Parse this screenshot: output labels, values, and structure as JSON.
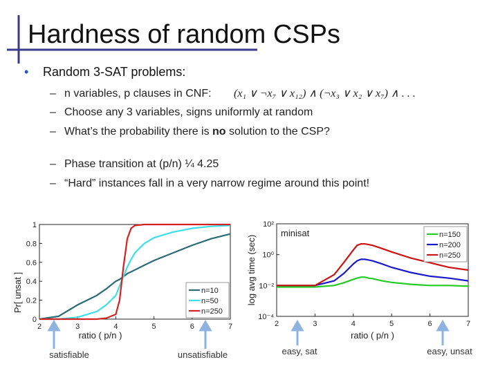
{
  "title": "Hardness of random CSPs",
  "bullet": "Random 3-SAT problems:",
  "items": [
    {
      "text": "n variables, p clauses in CNF:",
      "formula": "(x₁ ∨ ¬x₇ ∨ x₁₂) ∧ (¬x₃ ∨ x₂ ∨ x₇) ∧ . . ."
    },
    {
      "text": "Choose any 3 variables, signs uniformly at random"
    },
    {
      "parts": [
        "What’s the probability there is ",
        "no",
        " solution to the CSP?"
      ]
    },
    {
      "text": "Phase transition at  (p/n) ¼ 4.25"
    },
    {
      "text": "“Hard” instances fall in a very narrow regime around this point!"
    }
  ],
  "captions": [
    "satisfiable",
    "unsatisfiable",
    "easy, sat",
    "easy, unsat"
  ],
  "chart_data": [
    {
      "type": "line",
      "xlabel": "ratio  ( p/n )",
      "ylabel": "Pr[ unsat ]",
      "x": [
        2,
        2.5,
        3,
        3.5,
        3.75,
        4,
        4.1,
        4.2,
        4.3,
        4.4,
        4.5,
        4.75,
        5,
        5.5,
        6,
        6.5,
        7
      ],
      "xlim": [
        2,
        7
      ],
      "xticks": [
        2,
        3,
        4,
        5,
        6,
        7
      ],
      "ylim": [
        0,
        1
      ],
      "yticks": [
        0,
        0.2,
        0.4,
        0.6,
        0.8,
        1
      ],
      "legend": "lower right",
      "series": [
        {
          "name": "n=10",
          "color": "#2a6b73",
          "values": [
            0,
            0.03,
            0.15,
            0.25,
            0.32,
            0.4,
            0.42,
            0.45,
            0.48,
            0.5,
            0.52,
            0.57,
            0.62,
            0.7,
            0.78,
            0.85,
            0.9
          ]
        },
        {
          "name": "n=50",
          "color": "#3de0e8",
          "values": [
            0,
            0,
            0.02,
            0.08,
            0.15,
            0.25,
            0.35,
            0.45,
            0.55,
            0.63,
            0.7,
            0.8,
            0.86,
            0.92,
            0.96,
            0.98,
            0.99
          ]
        },
        {
          "name": "n=250",
          "color": "#d42020",
          "values": [
            0,
            0,
            0,
            0,
            0.01,
            0.05,
            0.2,
            0.55,
            0.85,
            0.96,
            0.99,
            1,
            1,
            1,
            1,
            1,
            1
          ]
        }
      ]
    },
    {
      "type": "line",
      "xlabel": "ratio  ( p/n )",
      "ylabel": "log avg time (sec)",
      "annotation": "minisat",
      "log": true,
      "x": [
        2,
        2.5,
        3,
        3.5,
        3.75,
        4,
        4.1,
        4.2,
        4.3,
        4.4,
        4.5,
        4.75,
        5,
        5.5,
        6,
        6.5,
        7
      ],
      "xlim": [
        2,
        7
      ],
      "xticks": [
        2,
        3,
        4,
        5,
        6,
        7
      ],
      "ylim": [
        0.0001,
        100
      ],
      "yticks": [
        {
          "value": 0.0001,
          "label": "10⁻⁴"
        },
        {
          "value": 0.01,
          "label": "10⁻²"
        },
        {
          "value": 1,
          "label": "10⁰"
        },
        {
          "value": 100,
          "label": "10²"
        }
      ],
      "legend": "upper right",
      "series": [
        {
          "name": "n=150",
          "color": "#22cc22",
          "values": [
            0.008,
            0.008,
            0.008,
            0.01,
            0.015,
            0.025,
            0.03,
            0.035,
            0.035,
            0.03,
            0.028,
            0.02,
            0.016,
            0.012,
            0.01,
            0.01,
            0.009
          ]
        },
        {
          "name": "n=200",
          "color": "#1a1acc",
          "values": [
            0.01,
            0.01,
            0.01,
            0.02,
            0.06,
            0.25,
            0.4,
            0.5,
            0.5,
            0.45,
            0.4,
            0.25,
            0.15,
            0.07,
            0.04,
            0.03,
            0.02
          ]
        },
        {
          "name": "n=250",
          "color": "#cc1111",
          "values": [
            0.01,
            0.01,
            0.01,
            0.05,
            0.3,
            2,
            4,
            5,
            5,
            4.5,
            4,
            2.5,
            1.5,
            0.6,
            0.3,
            0.15,
            0.1
          ]
        }
      ]
    }
  ]
}
